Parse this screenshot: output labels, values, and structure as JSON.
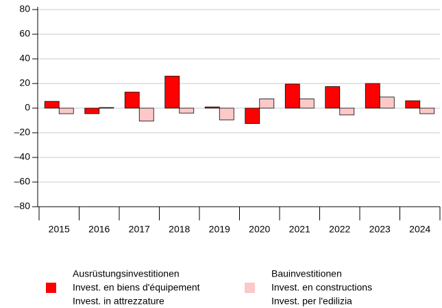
{
  "chart_data": {
    "type": "bar",
    "categories": [
      "2015",
      "2016",
      "2017",
      "2018",
      "2019",
      "2020",
      "2021",
      "2022",
      "2023",
      "2024"
    ],
    "series": [
      {
        "name": [
          "Ausrüstungsinvestitionen",
          "Invest. en biens d'équipement",
          "Invest. in attrezzature"
        ],
        "color": "#ff0000",
        "values": [
          5.5,
          -4.5,
          13,
          26,
          1,
          -12.5,
          19.5,
          17.5,
          20,
          6
        ]
      },
      {
        "name": [
          "Bauinvestitionen",
          "Invest. en constructions",
          "Invest. per l'edilizia"
        ],
        "color": "#fcc8c8",
        "values": [
          -4.5,
          0.5,
          -10.5,
          -4,
          -9.5,
          7.5,
          7.5,
          -5.5,
          9,
          -4.5
        ]
      }
    ],
    "ylim": [
      -80,
      80
    ],
    "yticks": [
      {
        "value": -80,
        "label": "–80"
      },
      {
        "value": -60,
        "label": "–60"
      },
      {
        "value": -40,
        "label": "–40"
      },
      {
        "value": -20,
        "label": "–20"
      },
      0,
      20,
      40,
      60,
      80
    ],
    "grid": true
  }
}
